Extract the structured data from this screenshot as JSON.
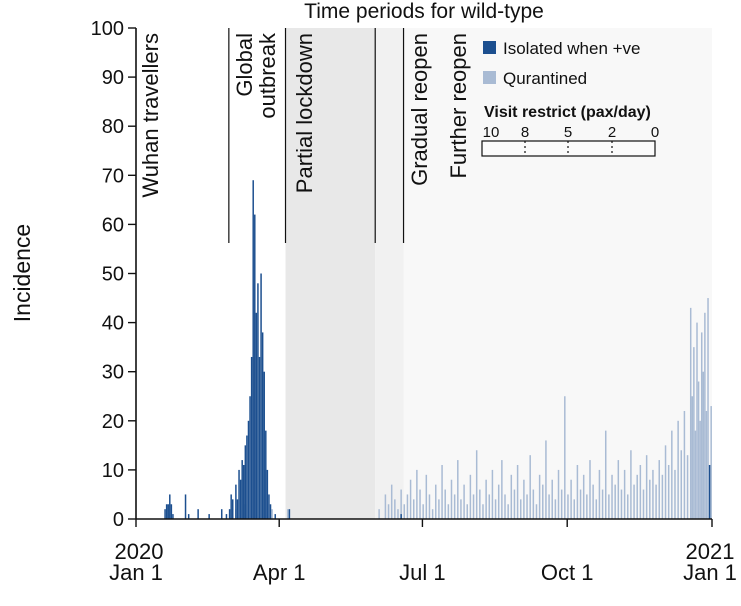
{
  "chart_data": {
    "type": "bar",
    "title": "Time periods for wild-type",
    "xlabel": "",
    "ylabel": "Incidence",
    "ylim": [
      0,
      100
    ],
    "yticks": [
      0,
      10,
      20,
      30,
      40,
      50,
      60,
      70,
      80,
      90,
      100
    ],
    "xlim": [
      "2020-01-01",
      "2021-01-01"
    ],
    "xticks": [
      {
        "date": "2020-01-01",
        "label": "2020",
        "label2": "Jan 1"
      },
      {
        "date": "2020-04-01",
        "label": "",
        "label2": "Apr 1"
      },
      {
        "date": "2020-07-01",
        "label": "",
        "label2": "Jul 1"
      },
      {
        "date": "2020-10-01",
        "label": "",
        "label2": "Oct 1"
      },
      {
        "date": "2021-01-01",
        "label": "2021",
        "label2": "Jan 1"
      }
    ],
    "grid": false,
    "legend_position": "top-right",
    "periods": [
      {
        "label": "Wuhan travellers",
        "start": "2020-01-01",
        "end": "2020-02-29",
        "color": "#ffffff"
      },
      {
        "label": "Global outbreak",
        "start": "2020-02-29",
        "end": "2020-04-01",
        "color": "#ffffff"
      },
      {
        "label": "Partial lockdown",
        "start": "2020-04-05",
        "end": "2020-06-01",
        "color": "#e8e8e8"
      },
      {
        "label": "Gradual reopen",
        "start": "2020-06-01",
        "end": "2020-06-19",
        "color": "#f1f1f1"
      },
      {
        "label": "Further reopen",
        "start": "2020-06-19",
        "end": "2021-01-01",
        "color": "#f8f8f8"
      }
    ],
    "visit_restrict": {
      "title": "Visit restrict (pax/day)",
      "ticks": [
        "10",
        "8",
        "5",
        "2",
        "0"
      ]
    },
    "series": [
      {
        "name": "Isolated when +ve",
        "color": "#1c4f8f",
        "points": [
          [
            "2020-01-19",
            2
          ],
          [
            "2020-01-20",
            3
          ],
          [
            "2020-01-21",
            3
          ],
          [
            "2020-01-22",
            5
          ],
          [
            "2020-01-23",
            3
          ],
          [
            "2020-01-24",
            1
          ],
          [
            "2020-02-01",
            5
          ],
          [
            "2020-02-03",
            1
          ],
          [
            "2020-02-09",
            2
          ],
          [
            "2020-02-16",
            1
          ],
          [
            "2020-02-24",
            2
          ],
          [
            "2020-02-27",
            1
          ],
          [
            "2020-02-29",
            2
          ],
          [
            "2020-03-01",
            5
          ],
          [
            "2020-03-02",
            4
          ],
          [
            "2020-03-04",
            7
          ],
          [
            "2020-03-05",
            4
          ],
          [
            "2020-03-06",
            10
          ],
          [
            "2020-03-07",
            8
          ],
          [
            "2020-03-08",
            12
          ],
          [
            "2020-03-09",
            11
          ],
          [
            "2020-03-10",
            15
          ],
          [
            "2020-03-11",
            17
          ],
          [
            "2020-03-12",
            20
          ],
          [
            "2020-03-13",
            25
          ],
          [
            "2020-03-14",
            33
          ],
          [
            "2020-03-15",
            69
          ],
          [
            "2020-03-16",
            62
          ],
          [
            "2020-03-17",
            42
          ],
          [
            "2020-03-18",
            48
          ],
          [
            "2020-03-19",
            33
          ],
          [
            "2020-03-20",
            50
          ],
          [
            "2020-03-21",
            38
          ],
          [
            "2020-03-22",
            30
          ],
          [
            "2020-03-23",
            18
          ],
          [
            "2020-03-24",
            10
          ],
          [
            "2020-03-25",
            5
          ],
          [
            "2020-03-26",
            3
          ],
          [
            "2020-03-29",
            1
          ],
          [
            "2020-04-07",
            2
          ],
          [
            "2020-06-17",
            1
          ],
          [
            "2020-12-30",
            11
          ]
        ]
      },
      {
        "name": "Qurantined",
        "color": "#a9bbd4",
        "points": [
          [
            "2020-01-22",
            1
          ],
          [
            "2020-03-04",
            2
          ],
          [
            "2020-03-10",
            3
          ],
          [
            "2020-03-27",
            2
          ],
          [
            "2020-04-06",
            2
          ],
          [
            "2020-06-03",
            2
          ],
          [
            "2020-06-07",
            5
          ],
          [
            "2020-06-09",
            3
          ],
          [
            "2020-06-11",
            7
          ],
          [
            "2020-06-13",
            4
          ],
          [
            "2020-06-15",
            2
          ],
          [
            "2020-06-17",
            6
          ],
          [
            "2020-06-19",
            3
          ],
          [
            "2020-06-21",
            5
          ],
          [
            "2020-06-23",
            8
          ],
          [
            "2020-06-25",
            4
          ],
          [
            "2020-06-27",
            10
          ],
          [
            "2020-06-29",
            6
          ],
          [
            "2020-07-01",
            3
          ],
          [
            "2020-07-03",
            9
          ],
          [
            "2020-07-05",
            5
          ],
          [
            "2020-07-07",
            2
          ],
          [
            "2020-07-09",
            7
          ],
          [
            "2020-07-11",
            4
          ],
          [
            "2020-07-13",
            11
          ],
          [
            "2020-07-15",
            6
          ],
          [
            "2020-07-17",
            3
          ],
          [
            "2020-07-19",
            8
          ],
          [
            "2020-07-21",
            5
          ],
          [
            "2020-07-23",
            12
          ],
          [
            "2020-07-25",
            4
          ],
          [
            "2020-07-27",
            7
          ],
          [
            "2020-07-29",
            3
          ],
          [
            "2020-07-31",
            9
          ],
          [
            "2020-08-02",
            5
          ],
          [
            "2020-08-04",
            14
          ],
          [
            "2020-08-06",
            6
          ],
          [
            "2020-08-08",
            3
          ],
          [
            "2020-08-10",
            8
          ],
          [
            "2020-08-12",
            5
          ],
          [
            "2020-08-14",
            10
          ],
          [
            "2020-08-16",
            4
          ],
          [
            "2020-08-18",
            7
          ],
          [
            "2020-08-20",
            12
          ],
          [
            "2020-08-22",
            5
          ],
          [
            "2020-08-24",
            3
          ],
          [
            "2020-08-26",
            9
          ],
          [
            "2020-08-28",
            6
          ],
          [
            "2020-08-30",
            11
          ],
          [
            "2020-09-01",
            4
          ],
          [
            "2020-09-03",
            8
          ],
          [
            "2020-09-05",
            5
          ],
          [
            "2020-09-07",
            13
          ],
          [
            "2020-09-09",
            6
          ],
          [
            "2020-09-11",
            3
          ],
          [
            "2020-09-13",
            9
          ],
          [
            "2020-09-15",
            7
          ],
          [
            "2020-09-17",
            16
          ],
          [
            "2020-09-19",
            5
          ],
          [
            "2020-09-21",
            8
          ],
          [
            "2020-09-23",
            4
          ],
          [
            "2020-09-25",
            10
          ],
          [
            "2020-09-27",
            6
          ],
          [
            "2020-09-29",
            25
          ],
          [
            "2020-10-01",
            5
          ],
          [
            "2020-10-03",
            8
          ],
          [
            "2020-10-05",
            4
          ],
          [
            "2020-10-07",
            11
          ],
          [
            "2020-10-09",
            6
          ],
          [
            "2020-10-11",
            9
          ],
          [
            "2020-10-13",
            5
          ],
          [
            "2020-10-15",
            12
          ],
          [
            "2020-10-17",
            7
          ],
          [
            "2020-10-19",
            4
          ],
          [
            "2020-10-21",
            10
          ],
          [
            "2020-10-23",
            6
          ],
          [
            "2020-10-25",
            18
          ],
          [
            "2020-10-27",
            5
          ],
          [
            "2020-10-29",
            9
          ],
          [
            "2020-10-31",
            7
          ],
          [
            "2020-11-02",
            12
          ],
          [
            "2020-11-04",
            6
          ],
          [
            "2020-11-06",
            10
          ],
          [
            "2020-11-08",
            5
          ],
          [
            "2020-11-10",
            14
          ],
          [
            "2020-11-12",
            7
          ],
          [
            "2020-11-14",
            9
          ],
          [
            "2020-11-16",
            11
          ],
          [
            "2020-11-18",
            6
          ],
          [
            "2020-11-20",
            13
          ],
          [
            "2020-11-22",
            8
          ],
          [
            "2020-11-24",
            10
          ],
          [
            "2020-11-26",
            7
          ],
          [
            "2020-11-28",
            12
          ],
          [
            "2020-11-30",
            9
          ],
          [
            "2020-12-02",
            15
          ],
          [
            "2020-12-04",
            11
          ],
          [
            "2020-12-06",
            18
          ],
          [
            "2020-12-08",
            10
          ],
          [
            "2020-12-10",
            20
          ],
          [
            "2020-12-12",
            14
          ],
          [
            "2020-12-14",
            22
          ],
          [
            "2020-12-16",
            13
          ],
          [
            "2020-12-18",
            43
          ],
          [
            "2020-12-19",
            25
          ],
          [
            "2020-12-20",
            35
          ],
          [
            "2020-12-21",
            18
          ],
          [
            "2020-12-22",
            40
          ],
          [
            "2020-12-23",
            28
          ],
          [
            "2020-12-24",
            20
          ],
          [
            "2020-12-25",
            38
          ],
          [
            "2020-12-26",
            30
          ],
          [
            "2020-12-27",
            42
          ],
          [
            "2020-12-28",
            22
          ],
          [
            "2020-12-29",
            45
          ],
          [
            "2020-12-31",
            23
          ]
        ]
      }
    ]
  }
}
